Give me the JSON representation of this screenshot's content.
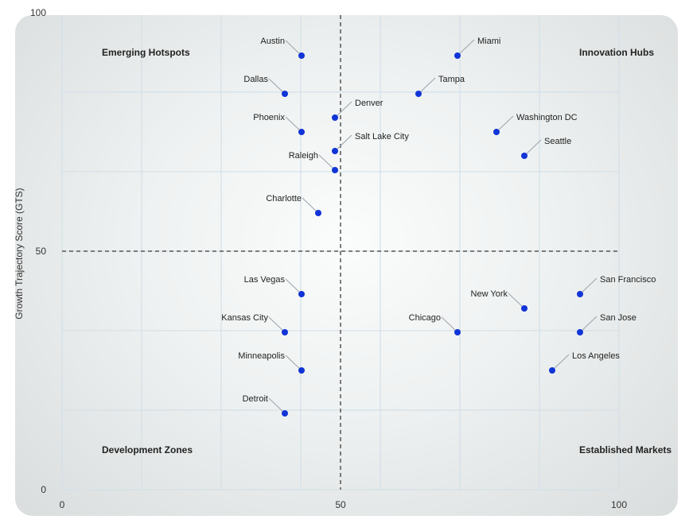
{
  "chart_data": {
    "type": "scatter",
    "ylabel": "Growth Trajectory Score (GTS)",
    "xlabel": "",
    "xlim": [
      0,
      100
    ],
    "ylim": [
      0,
      100
    ],
    "x_ticks": [
      0,
      50,
      100
    ],
    "y_ticks": [
      0,
      50
    ],
    "y_top_tick_partial": "100",
    "grid": true,
    "divider_lines": {
      "x": 50,
      "y": 50
    },
    "quadrant_labels": {
      "top_left": "Emerging Hotspots",
      "top_right": "Innovation Hubs",
      "bottom_left": "Development Zones",
      "bottom_right": "Established Markets"
    },
    "point_color": "#1034d6",
    "points": [
      {
        "name": "Austin",
        "x": 43,
        "y": 91,
        "label_side": "left"
      },
      {
        "name": "Miami",
        "x": 71,
        "y": 91,
        "label_side": "right"
      },
      {
        "name": "Dallas",
        "x": 40,
        "y": 83,
        "label_side": "left"
      },
      {
        "name": "Tampa",
        "x": 64,
        "y": 83,
        "label_side": "right"
      },
      {
        "name": "Denver",
        "x": 49,
        "y": 78,
        "label_side": "right"
      },
      {
        "name": "Phoenix",
        "x": 43,
        "y": 75,
        "label_side": "left"
      },
      {
        "name": "Washington DC",
        "x": 78,
        "y": 75,
        "label_side": "right"
      },
      {
        "name": "Salt Lake City",
        "x": 49,
        "y": 71,
        "label_side": "right"
      },
      {
        "name": "Seattle",
        "x": 83,
        "y": 70,
        "label_side": "right"
      },
      {
        "name": "Raleigh",
        "x": 49,
        "y": 67,
        "label_side": "left"
      },
      {
        "name": "Charlotte",
        "x": 46,
        "y": 58,
        "label_side": "left"
      },
      {
        "name": "Las Vegas",
        "x": 43,
        "y": 41,
        "label_side": "left"
      },
      {
        "name": "San Francisco",
        "x": 93,
        "y": 41,
        "label_side": "right"
      },
      {
        "name": "New York",
        "x": 83,
        "y": 38,
        "label_side": "left"
      },
      {
        "name": "Kansas City",
        "x": 40,
        "y": 33,
        "label_side": "left"
      },
      {
        "name": "Chicago",
        "x": 71,
        "y": 33,
        "label_side": "left"
      },
      {
        "name": "San Jose",
        "x": 93,
        "y": 33,
        "label_side": "right"
      },
      {
        "name": "Minneapolis",
        "x": 43,
        "y": 25,
        "label_side": "left"
      },
      {
        "name": "Los Angeles",
        "x": 88,
        "y": 25,
        "label_side": "right"
      },
      {
        "name": "Detroit",
        "x": 40,
        "y": 16,
        "label_side": "left"
      }
    ]
  }
}
